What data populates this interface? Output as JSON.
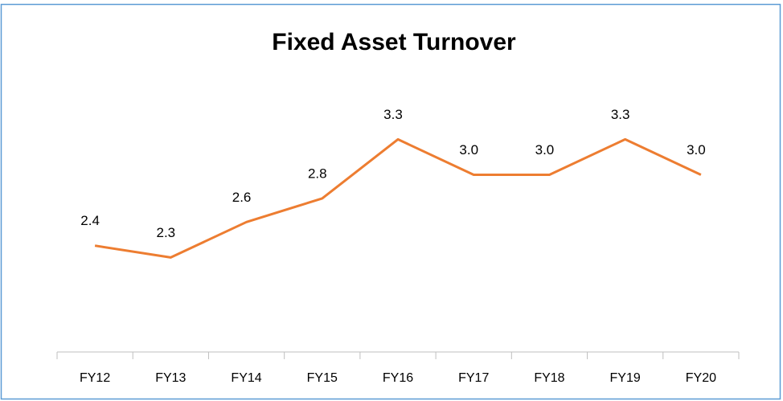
{
  "chart_data": {
    "type": "line",
    "title": "Fixed Asset Turnover",
    "categories": [
      "FY12",
      "FY13",
      "FY14",
      "FY15",
      "FY16",
      "FY17",
      "FY18",
      "FY19",
      "FY20"
    ],
    "values": [
      2.4,
      2.3,
      2.6,
      2.8,
      3.3,
      3.0,
      3.0,
      3.3,
      3.0
    ],
    "value_labels": [
      "2.4",
      "2.3",
      "2.6",
      "2.8",
      "3.3",
      "3.0",
      "3.0",
      "3.3",
      "3.0"
    ],
    "color": "#ed7d31",
    "ylim": [
      1.5,
      3.5
    ]
  }
}
